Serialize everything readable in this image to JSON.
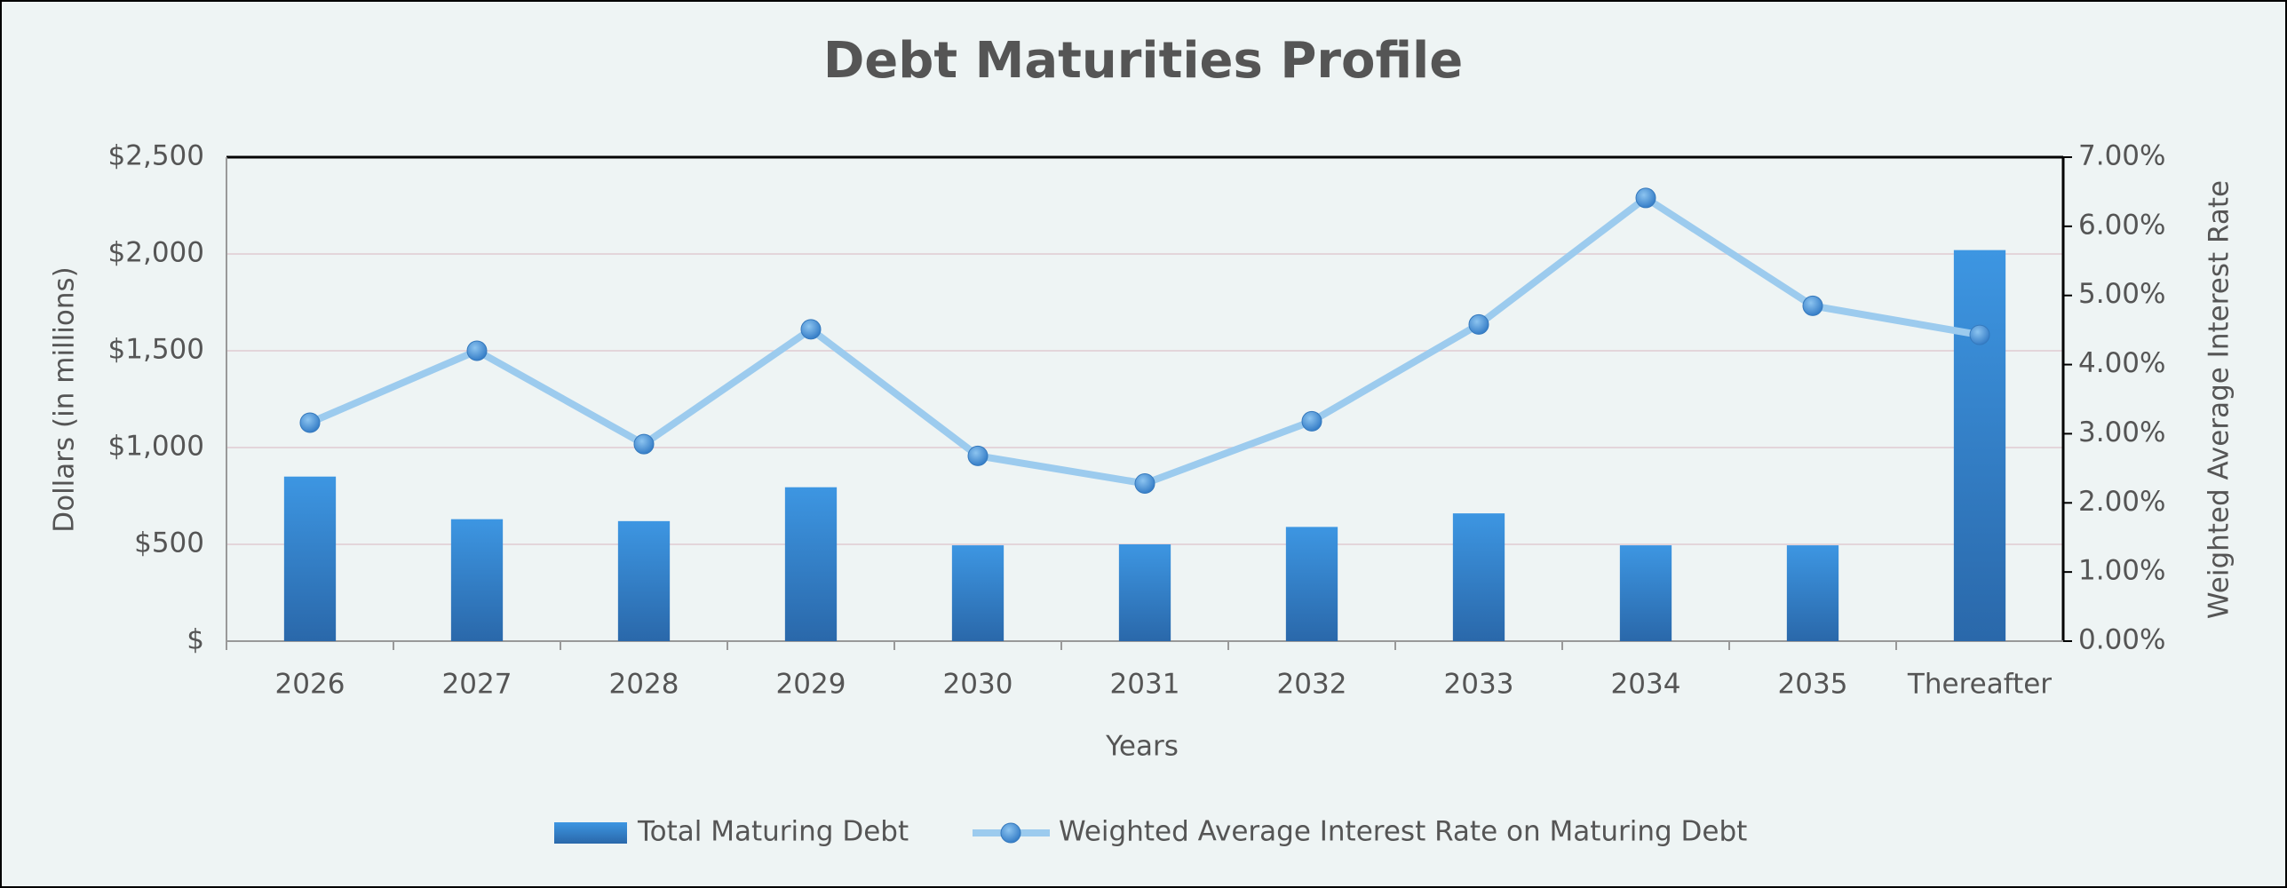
{
  "chart_data": {
    "type": "bar_line",
    "title": "Debt Maturities Profile",
    "x_label": "Years",
    "y_label": "Dollars (in millions)",
    "y2_label": "Weighted Average Interest Rate",
    "categories": [
      "2026",
      "2027",
      "2028",
      "2029",
      "2030",
      "2031",
      "2032",
      "2033",
      "2034",
      "2035",
      "Thereafter"
    ],
    "series": [
      {
        "name": "Total Maturing Debt",
        "color": "#3a8ad6",
        "type": "bar",
        "values": [
          850,
          630,
          620,
          795,
          495,
          500,
          590,
          660,
          495,
          495,
          2020
        ]
      },
      {
        "name": "Weighted Average Interest Rate on Maturing Debt",
        "color": "#9ccbee",
        "type": "line",
        "axis": "y2",
        "values": [
          3.16,
          4.2,
          2.85,
          4.51,
          2.68,
          2.28,
          3.18,
          4.58,
          6.41,
          4.85,
          4.43
        ]
      }
    ],
    "ylim": [
      0,
      2500
    ],
    "yticks": [
      {
        "value": 0,
        "label": "$"
      },
      {
        "value": 500,
        "label": "$500"
      },
      {
        "value": 1000,
        "label": "$1,000"
      },
      {
        "value": 1500,
        "label": "$1,500"
      },
      {
        "value": 2000,
        "label": "$2,000"
      },
      {
        "value": 2500,
        "label": "$2,500"
      }
    ],
    "y2lim": [
      0,
      7
    ],
    "y2ticks": [
      {
        "value": 0,
        "label": "0.00%"
      },
      {
        "value": 1,
        "label": "1.00%"
      },
      {
        "value": 2,
        "label": "2.00%"
      },
      {
        "value": 3,
        "label": "3.00%"
      },
      {
        "value": 4,
        "label": "4.00%"
      },
      {
        "value": 5,
        "label": "5.00%"
      },
      {
        "value": 6,
        "label": "6.00%"
      },
      {
        "value": 7,
        "label": "7.00%"
      }
    ],
    "grid": true,
    "legend": "bottom"
  }
}
